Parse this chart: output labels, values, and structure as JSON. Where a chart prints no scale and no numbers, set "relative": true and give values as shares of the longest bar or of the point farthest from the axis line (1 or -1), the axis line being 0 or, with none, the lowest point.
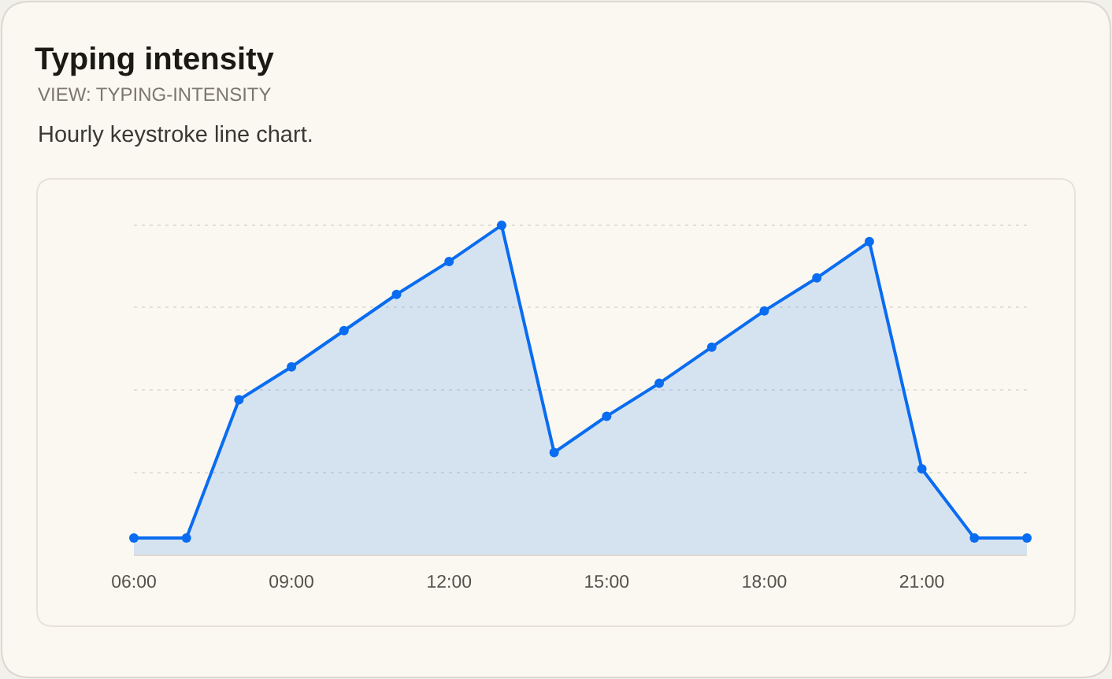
{
  "chart_data": {
    "type": "area",
    "title": "Typing intensity",
    "subtitle": "VIEW: TYPING-INTENSITY",
    "annotations": [
      "Hourly keystroke line chart."
    ],
    "x": [
      6,
      7,
      8,
      9,
      10,
      11,
      12,
      13,
      14,
      15,
      16,
      17,
      18,
      19,
      20,
      21,
      22,
      23
    ],
    "xlim": [
      6,
      23
    ],
    "xticks": [
      {
        "value": 6,
        "label": "06:00"
      },
      {
        "value": 9,
        "label": "09:00"
      },
      {
        "value": 12,
        "label": "12:00"
      },
      {
        "value": 15,
        "label": "15:00"
      },
      {
        "value": 18,
        "label": "18:00"
      },
      {
        "value": 21,
        "label": "21:00"
      }
    ],
    "relative": true,
    "series": [
      {
        "color": "#0a6cf0",
        "values": [
          0.05,
          0.05,
          0.47,
          0.57,
          0.68,
          0.79,
          0.89,
          1,
          0.31,
          0.42,
          0.52,
          0.63,
          0.74,
          0.84,
          0.95,
          0.26,
          0.05,
          0.05
        ]
      }
    ],
    "grid": "y",
    "marker": "circle",
    "line_style": "solid",
    "legend": false
  }
}
